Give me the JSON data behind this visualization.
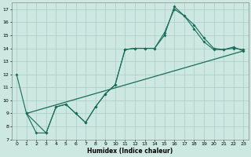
{
  "xlabel": "Humidex (Indice chaleur)",
  "bg_color": "#cce8e0",
  "line_color": "#1a6b5a",
  "grid_color": "#aacccc",
  "xlim": [
    -0.5,
    23.5
  ],
  "ylim": [
    7,
    17.5
  ],
  "xticks": [
    0,
    1,
    2,
    3,
    4,
    5,
    6,
    7,
    8,
    9,
    10,
    11,
    12,
    13,
    14,
    15,
    16,
    17,
    18,
    19,
    20,
    21,
    22,
    23
  ],
  "yticks": [
    7,
    8,
    9,
    10,
    11,
    12,
    13,
    14,
    15,
    16,
    17
  ],
  "series1_x": [
    0,
    1,
    2,
    3,
    4,
    5,
    6,
    7,
    8,
    9,
    10,
    11,
    12,
    13,
    14,
    15,
    16,
    17,
    18,
    19,
    20,
    21,
    22,
    23
  ],
  "series1_y": [
    12,
    9,
    7.5,
    7.5,
    9.5,
    9.7,
    9.0,
    8.3,
    9.5,
    10.5,
    11.2,
    13.9,
    14.0,
    14.0,
    14.0,
    15.0,
    17.2,
    16.5,
    15.8,
    14.8,
    14.0,
    13.9,
    14.1,
    13.8
  ],
  "series2_x": [
    1,
    3,
    4,
    5,
    6,
    7,
    8,
    9,
    10,
    11,
    12,
    13,
    14,
    15,
    16,
    17,
    18,
    19,
    20,
    21,
    22,
    23
  ],
  "series2_y": [
    9,
    7.5,
    9.5,
    9.7,
    9.0,
    8.3,
    9.5,
    10.5,
    11.2,
    13.9,
    14.0,
    14.0,
    14.0,
    15.2,
    17.0,
    16.5,
    15.5,
    14.5,
    13.9,
    13.9,
    14.0,
    13.9
  ],
  "trend_x": [
    1,
    23
  ],
  "trend_y": [
    9.0,
    13.8
  ]
}
